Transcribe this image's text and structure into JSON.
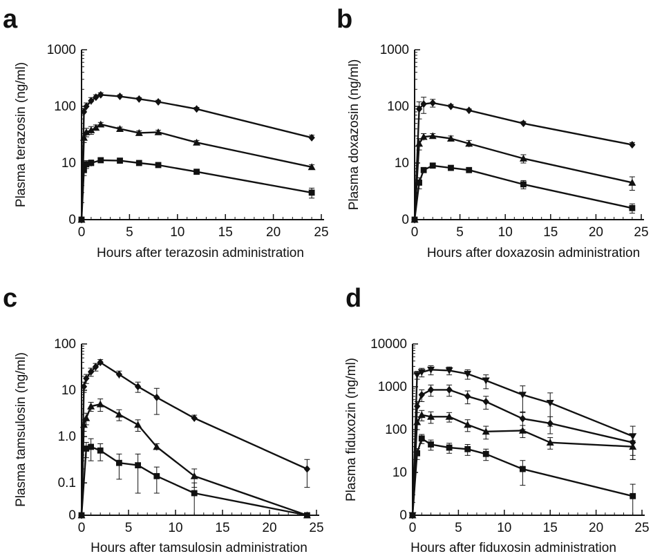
{
  "chart_data": [
    {
      "panel": "a",
      "type": "line",
      "ylabel": "Plasma terazosin (ng/ml)",
      "xlabel": "Hours after terazosin administration",
      "xlim": [
        0,
        25
      ],
      "ylog": true,
      "y_tick_values": [
        1,
        10,
        100,
        1000
      ],
      "y_tick_labels": [
        "0",
        "10",
        "100",
        "1000"
      ],
      "x_ticks": [
        0,
        5,
        10,
        15,
        20,
        25
      ],
      "series": [
        {
          "marker": "diamond",
          "x": [
            0,
            0.25,
            0.5,
            1,
            1.5,
            2,
            4,
            6,
            8,
            12,
            24
          ],
          "y": [
            1,
            80,
            100,
            125,
            145,
            160,
            150,
            135,
            120,
            90,
            28
          ],
          "err": [
            0,
            12,
            15,
            18,
            15,
            14,
            10,
            8,
            8,
            6,
            3
          ]
        },
        {
          "marker": "triangle",
          "x": [
            0,
            0.25,
            0.5,
            1,
            1.5,
            2,
            4,
            6,
            8,
            12,
            24
          ],
          "y": [
            1,
            28,
            35,
            38,
            42,
            48,
            40,
            34,
            35,
            23,
            8.5
          ],
          "err": [
            0,
            5,
            6,
            6,
            5,
            4,
            3,
            3,
            3,
            2,
            0.8
          ]
        },
        {
          "marker": "square",
          "x": [
            0,
            0.25,
            0.5,
            1,
            2,
            4,
            6,
            8,
            12,
            24
          ],
          "y": [
            1,
            7.5,
            9.5,
            10,
            11.2,
            11,
            10,
            9.2,
            7,
            3
          ],
          "err": [
            0,
            1.5,
            1.5,
            1.3,
            1,
            1,
            0.8,
            0.8,
            0.6,
            0.6
          ]
        }
      ]
    },
    {
      "panel": "b",
      "type": "line",
      "ylabel": "Plasma doxazosin (ng/ml)",
      "xlabel": "Hours after doxazosin administration",
      "xlim": [
        0,
        25
      ],
      "ylog": true,
      "y_tick_values": [
        1,
        10,
        100,
        1000
      ],
      "y_tick_labels": [
        "0",
        "10",
        "100",
        "1000"
      ],
      "x_ticks": [
        0,
        5,
        10,
        15,
        20,
        25
      ],
      "series": [
        {
          "marker": "diamond",
          "x": [
            0,
            0.5,
            1,
            2,
            4,
            6,
            12,
            24
          ],
          "y": [
            1,
            90,
            110,
            115,
            100,
            85,
            50,
            21
          ],
          "err": [
            0,
            30,
            35,
            18,
            8,
            5,
            4,
            2
          ]
        },
        {
          "marker": "triangle",
          "x": [
            0,
            0.5,
            1,
            2,
            4,
            6,
            12,
            24
          ],
          "y": [
            1,
            22,
            29,
            30,
            27,
            22,
            12,
            4.5
          ],
          "err": [
            0,
            5,
            4,
            3,
            3,
            3,
            2,
            1.2
          ]
        },
        {
          "marker": "square",
          "x": [
            0,
            0.5,
            1,
            2,
            4,
            6,
            12,
            24
          ],
          "y": [
            1,
            4.5,
            7.5,
            9,
            8.2,
            7.5,
            4.2,
            1.6
          ],
          "err": [
            0,
            1,
            0.8,
            0.8,
            0.6,
            0.8,
            0.7,
            0.3
          ]
        }
      ]
    },
    {
      "panel": "c",
      "type": "line",
      "ylabel": "Plasma tamsulosin (ng/ml)",
      "xlabel": "Hours after tamsulosin administration",
      "xlim": [
        0,
        25
      ],
      "ylog": true,
      "y_tick_values": [
        0.02,
        0.1,
        1,
        10,
        100
      ],
      "y_tick_labels": [
        "0",
        "0.1",
        "1.0",
        "10",
        "100"
      ],
      "x_ticks": [
        0,
        5,
        10,
        15,
        20,
        25
      ],
      "series": [
        {
          "marker": "diamond",
          "x": [
            0,
            0.25,
            0.5,
            1,
            1.5,
            2,
            4,
            6,
            8,
            12,
            24
          ],
          "y": [
            0.02,
            12,
            18,
            25,
            32,
            40,
            22,
            12,
            7,
            2.5,
            0.2
          ],
          "err": [
            0,
            3,
            4,
            5,
            6,
            6,
            4,
            3,
            4,
            0.4,
            0.12
          ]
        },
        {
          "marker": "triangle",
          "x": [
            0,
            0.25,
            0.5,
            1,
            2,
            4,
            6,
            8,
            12,
            24
          ],
          "y": [
            0.02,
            1.8,
            2.5,
            4.5,
            5,
            3,
            1.8,
            0.6,
            0.14,
            0.02
          ],
          "err": [
            0,
            0.5,
            0.7,
            1,
            1.5,
            0.8,
            0.5,
            0.1,
            0.06,
            0
          ]
        },
        {
          "marker": "square",
          "x": [
            0,
            0.5,
            1,
            2,
            4,
            6,
            8,
            12,
            24
          ],
          "y": [
            0.02,
            0.55,
            0.6,
            0.5,
            0.27,
            0.24,
            0.14,
            0.06,
            0.02
          ],
          "err": [
            0,
            0.2,
            0.3,
            0.2,
            0.15,
            0.18,
            0.08,
            0.04,
            0
          ]
        }
      ]
    },
    {
      "panel": "d",
      "type": "line",
      "ylabel": "Plasma fiduxozin (ng/ml)",
      "xlabel": "Hours after fiduxosin administration",
      "xlim": [
        0,
        25
      ],
      "ylog": true,
      "y_tick_values": [
        1,
        10,
        100,
        1000,
        10000
      ],
      "y_tick_labels": [
        "0",
        "10",
        "100",
        "1000",
        "10000"
      ],
      "x_ticks": [
        0,
        5,
        10,
        15,
        20,
        25
      ],
      "series": [
        {
          "marker": "triangle-down",
          "x": [
            0,
            0.5,
            1,
            2,
            4,
            6,
            8,
            12,
            15,
            24
          ],
          "y": [
            1,
            1900,
            2200,
            2500,
            2400,
            2000,
            1400,
            650,
            420,
            70
          ],
          "err": [
            0,
            400,
            500,
            600,
            500,
            500,
            500,
            400,
            300,
            50
          ]
        },
        {
          "marker": "diamond",
          "x": [
            0,
            0.5,
            1,
            2,
            4,
            6,
            8,
            12,
            15,
            24
          ],
          "y": [
            1,
            350,
            650,
            850,
            850,
            600,
            450,
            180,
            140,
            50
          ],
          "err": [
            0,
            100,
            200,
            250,
            250,
            200,
            150,
            80,
            60,
            30
          ]
        },
        {
          "marker": "triangle",
          "x": [
            0,
            0.5,
            1,
            2,
            4,
            6,
            8,
            12,
            15,
            24
          ],
          "y": [
            1,
            150,
            220,
            200,
            200,
            130,
            90,
            95,
            50,
            40
          ],
          "err": [
            0,
            50,
            60,
            60,
            50,
            40,
            30,
            30,
            15,
            15
          ]
        },
        {
          "marker": "square",
          "x": [
            0,
            0.5,
            1,
            2,
            4,
            6,
            8,
            12,
            24
          ],
          "y": [
            1,
            28,
            62,
            45,
            38,
            35,
            27,
            12,
            2.8
          ],
          "err": [
            0,
            8,
            15,
            12,
            10,
            10,
            8,
            7,
            2.5
          ]
        }
      ]
    }
  ]
}
